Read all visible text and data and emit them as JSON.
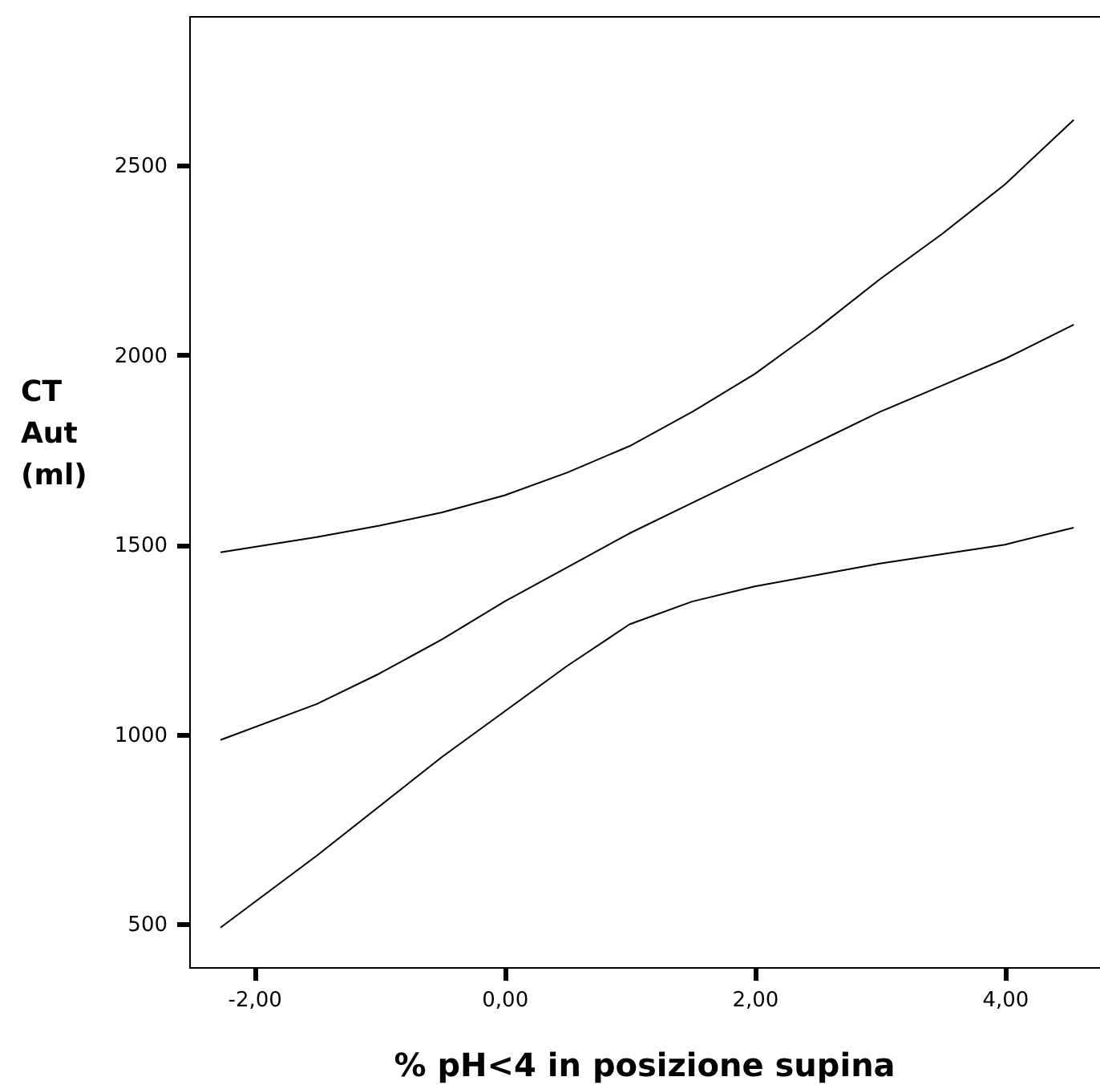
{
  "chart_data": {
    "type": "line",
    "xlabel": "% pH<4 in posizione supina",
    "ylabel": "CT Aut (ml)",
    "xlim": [
      -2.52,
      4.76
    ],
    "ylim": [
      386,
      2894
    ],
    "xticks": [
      {
        "value": -2,
        "label": "-2,00"
      },
      {
        "value": 0,
        "label": "0,00"
      },
      {
        "value": 2,
        "label": "2,00"
      },
      {
        "value": 4,
        "label": "4,00"
      }
    ],
    "yticks": [
      500,
      1000,
      1500,
      2000,
      2500
    ],
    "grid": false,
    "marker": "none",
    "line_style": "solid",
    "series": [
      {
        "color": "#000000",
        "x": [
          -2.27,
          -1.5,
          -1,
          -0.5,
          0,
          0.5,
          1,
          1.5,
          2,
          2.5,
          3,
          3.5,
          4,
          4.55
        ],
        "values": [
          1480,
          1520,
          1550,
          1585,
          1630,
          1690,
          1760,
          1850,
          1950,
          2070,
          2200,
          2320,
          2450,
          2620
        ]
      },
      {
        "color": "#000000",
        "x": [
          -2.27,
          -1.5,
          -1,
          -0.5,
          0,
          0.5,
          1,
          1.5,
          2,
          2.5,
          3,
          3.5,
          4,
          4.55
        ],
        "values": [
          985,
          1080,
          1160,
          1250,
          1350,
          1440,
          1530,
          1610,
          1690,
          1770,
          1850,
          1920,
          1990,
          2080
        ]
      },
      {
        "color": "#000000",
        "x": [
          -2.27,
          -1.5,
          -1,
          -0.5,
          0,
          0.5,
          1,
          1.5,
          2,
          2.5,
          3,
          3.5,
          4,
          4.55
        ],
        "values": [
          490,
          680,
          810,
          940,
          1060,
          1180,
          1290,
          1350,
          1390,
          1420,
          1450,
          1475,
          1500,
          1545
        ]
      }
    ]
  }
}
